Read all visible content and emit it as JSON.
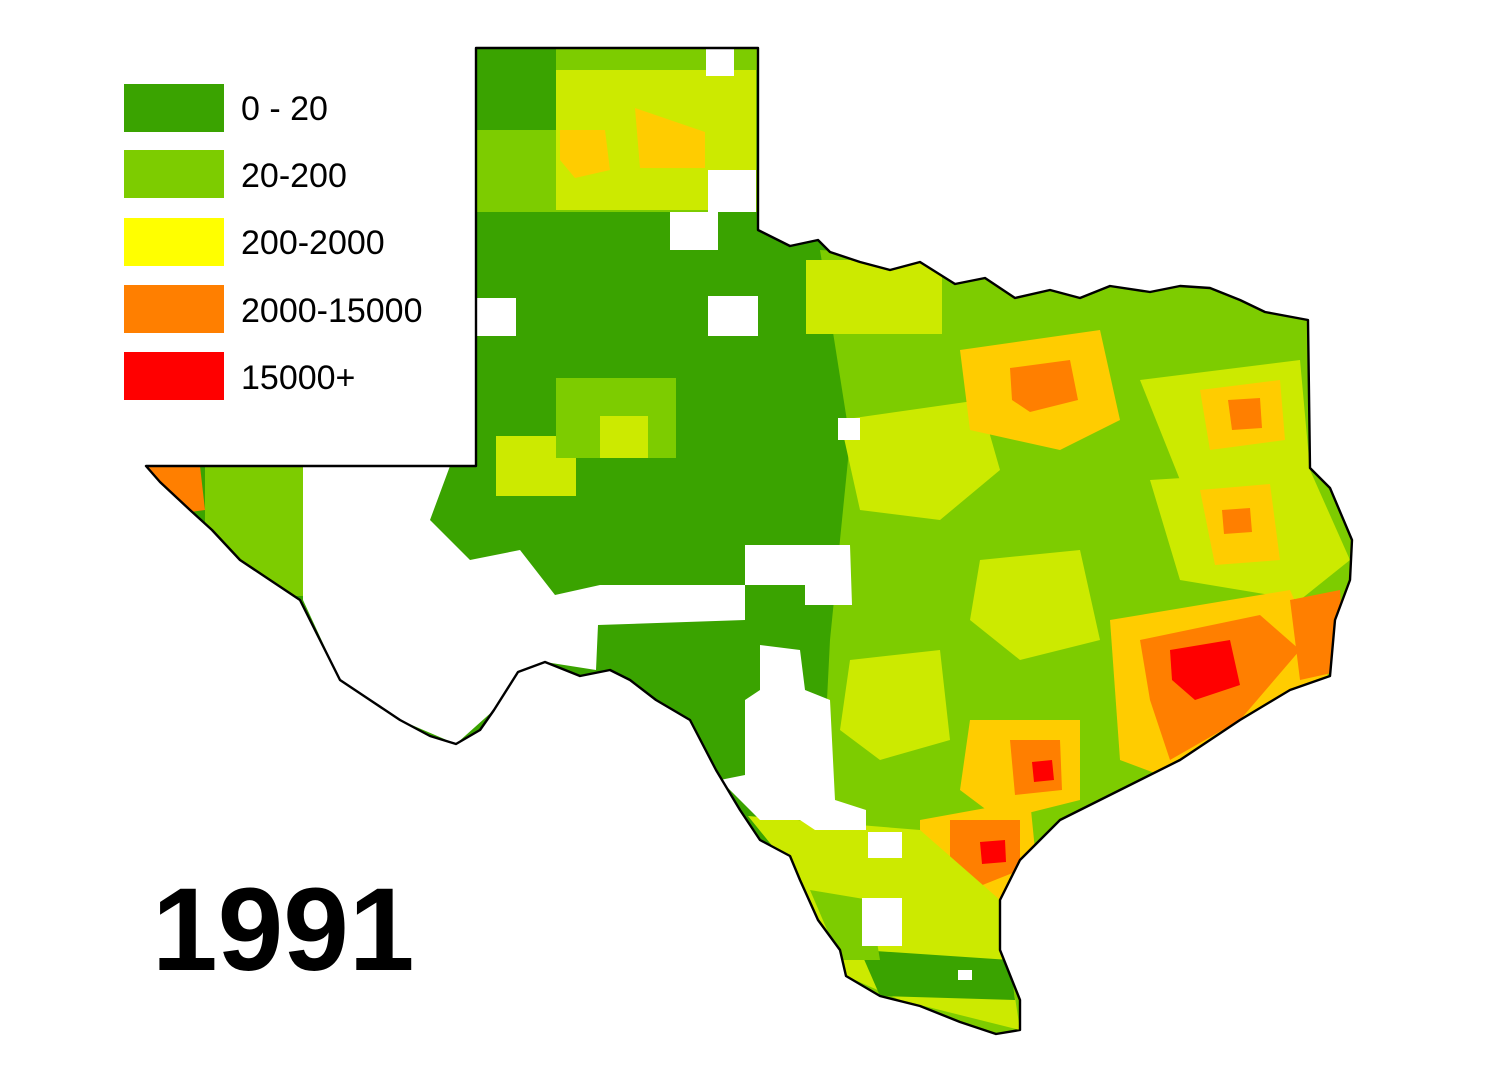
{
  "map": {
    "year": "1991",
    "legend": {
      "items": [
        {
          "label": "0 - 20",
          "color": "#3aa300"
        },
        {
          "label": "20-200",
          "color": "#7dcc00"
        },
        {
          "label": "200-2000",
          "color": "#ffff00"
        },
        {
          "label": "2000-15000",
          "color": "#ff7f00"
        },
        {
          "label": "15000+",
          "color": "#ff0000"
        }
      ]
    },
    "colors": {
      "class_0_20": "#3aa300",
      "class_20_200": "#7dcc00",
      "class_200_2000": "#ccea00",
      "class_200_2000_warm": "#ffcc00",
      "class_2000_15000": "#ff7f00",
      "class_15000_plus": "#ff0000",
      "no_data": "#ffffff",
      "border": "#000000"
    }
  }
}
